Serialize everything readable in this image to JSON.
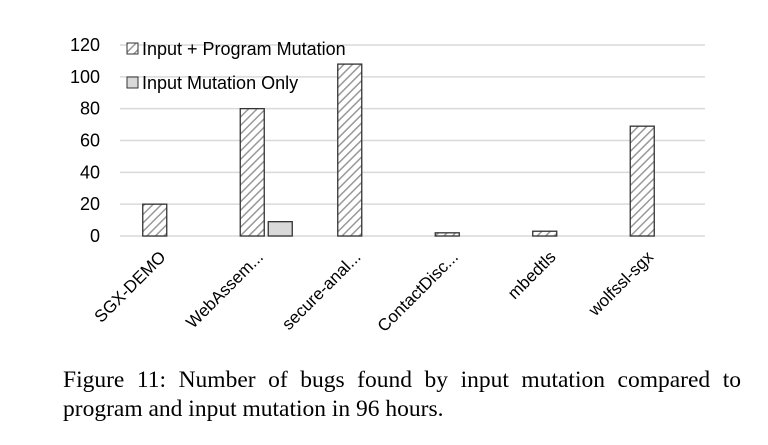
{
  "chart_data": {
    "type": "bar",
    "categories": [
      "SGX-DEMO",
      "WebAssem...",
      "secure-anal...",
      "ContactDisc...",
      "mbedtls",
      "wolfssl-sgx"
    ],
    "series": [
      {
        "name": "Input + Program Mutation",
        "values": [
          20,
          80,
          108,
          2,
          3,
          69
        ],
        "pattern": "diagonal-hatch"
      },
      {
        "name": "Input Mutation Only",
        "values": [
          0,
          9,
          0,
          0,
          0,
          0
        ],
        "color": "#d9d9d9"
      }
    ],
    "title": "",
    "xlabel": "",
    "ylabel": "",
    "ylim": [
      0,
      120
    ],
    "yticks": [
      0,
      20,
      40,
      60,
      80,
      100,
      120
    ],
    "grid": true,
    "legend": "top-left"
  },
  "caption": "Figure 11: Number of bugs found by input mutation compared to program and input mutation in 96 hours."
}
